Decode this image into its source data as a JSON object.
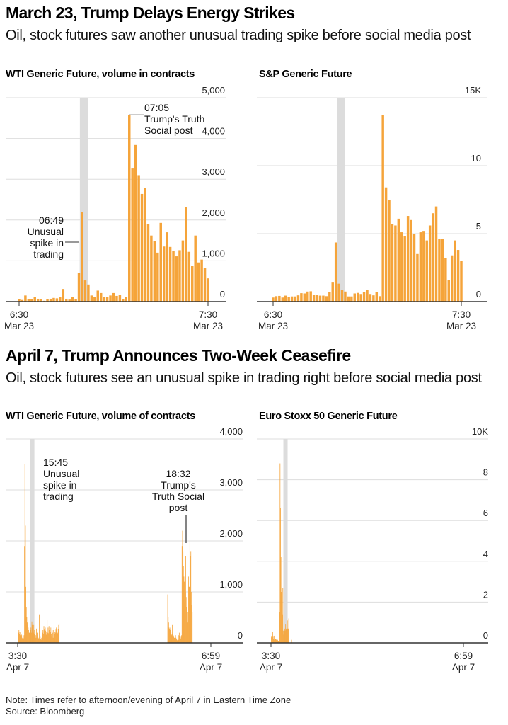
{
  "sections": [
    {
      "title": "March 23, Trump Delays Energy Strikes",
      "subtitle": "Oil, stock futures saw another unusual trading spike before social media post"
    },
    {
      "title": "April 7, Trump Announces Two-Week Ceasefire",
      "subtitle": "Oil, stock futures see an unusual spike in trading right before social media post"
    }
  ],
  "footer": {
    "note": "Note: Times refer to afternoon/evening of April 7 in Eastern Time Zone",
    "source": "Source: Bloomberg"
  },
  "colors": {
    "bar": "#f5a43a",
    "highlight": "#dcdcdc",
    "grid": "#dddddd",
    "axis": "#333333"
  },
  "chart_data": [
    {
      "id": "wti-mar23",
      "type": "bar",
      "title": "WTI Generic Future, volume in contracts",
      "xlabel": "",
      "ylabel": "",
      "ylim": [
        0,
        5000
      ],
      "yticks": [
        0,
        1000,
        2000,
        3000,
        4000,
        5000
      ],
      "ytick_labels": [
        "0",
        "1,000",
        "2,000",
        "3,000",
        "4,000",
        "5,000"
      ],
      "xtick_labels": [
        [
          "6:30",
          "Mar 23"
        ],
        [
          "7:30",
          "Mar 23"
        ]
      ],
      "x_start": "6:30",
      "x_end": "7:30",
      "interval": "1 min",
      "highlight_index": 19,
      "values": [
        60,
        40,
        150,
        60,
        60,
        110,
        70,
        60,
        20,
        60,
        70,
        90,
        80,
        110,
        310,
        70,
        50,
        120,
        60,
        700,
        2200,
        520,
        420,
        150,
        110,
        270,
        210,
        120,
        120,
        150,
        210,
        140,
        160,
        60,
        120,
        4580,
        3280,
        3840,
        3100,
        2640,
        2790,
        1900,
        1620,
        1480,
        1200,
        1930,
        1350,
        1700,
        1340,
        1240,
        1110,
        1260,
        1500,
        2320,
        1220,
        870,
        1620,
        960,
        1030,
        830,
        570
      ],
      "annotations": [
        {
          "time": "06:49",
          "text": [
            "06:49",
            "Unusual",
            "spike in",
            "trading"
          ],
          "index": 19
        },
        {
          "time": "07:05",
          "text": [
            "07:05",
            "Trump's Truth",
            "Social post"
          ],
          "index": 35
        }
      ],
      "grid": true
    },
    {
      "id": "sp-mar23",
      "type": "bar",
      "title": "S&P Generic Future",
      "xlabel": "",
      "ylabel": "",
      "ylim": [
        0,
        15000
      ],
      "yticks": [
        0,
        5000,
        10000,
        15000
      ],
      "ytick_labels": [
        "0",
        "5",
        "10",
        "15K"
      ],
      "xtick_labels": [
        [
          "6:30",
          "Mar 23"
        ],
        [
          "7:30",
          "Mar 23"
        ]
      ],
      "x_start": "6:30",
      "x_end": "7:30",
      "interval": "1 min",
      "highlight_index": 20,
      "values": [
        300,
        400,
        420,
        300,
        440,
        340,
        380,
        380,
        460,
        620,
        600,
        740,
        760,
        500,
        520,
        440,
        440,
        400,
        700,
        1400,
        4350,
        1320,
        880,
        740,
        380,
        380,
        600,
        640,
        560,
        700,
        860,
        560,
        460,
        680,
        400,
        13700,
        8400,
        7500,
        5700,
        5600,
        6100,
        5100,
        4800,
        6300,
        6000,
        5000,
        3500,
        5100,
        5200,
        4500,
        5600,
        6500,
        7000,
        4600,
        4600,
        3200,
        1600,
        3400,
        4500,
        3800,
        3000
      ],
      "grid": true
    },
    {
      "id": "wti-apr7",
      "type": "bar",
      "title": "WTI Generic Future, volume of contracts",
      "xlabel": "",
      "ylabel": "",
      "ylim": [
        0,
        4000
      ],
      "yticks": [
        0,
        1000,
        2000,
        3000,
        4000
      ],
      "ytick_labels": [
        "0",
        "1,000",
        "2,000",
        "3,000",
        "4,000"
      ],
      "xtick_labels": [
        [
          "3:30",
          "Apr 7"
        ],
        [
          "6:59",
          "Apr 7"
        ]
      ],
      "x_start": "3:30",
      "x_end": "6:59",
      "highlight_time": "15:45",
      "segments": [
        {
          "start_frac": 0.0,
          "values": [
            300,
            200,
            250,
            180,
            220,
            150,
            200,
            180,
            150,
            100,
            80,
            120,
            90,
            150,
            1900,
            3500,
            2300,
            1100,
            700,
            500,
            400,
            350,
            300,
            250,
            200,
            200,
            180,
            250,
            300,
            200,
            420,
            350,
            300,
            200,
            350,
            250,
            180,
            200,
            150,
            100,
            280,
            120,
            160,
            200,
            100,
            80,
            560,
            100,
            120,
            80,
            60,
            100,
            150,
            200,
            250,
            180,
            330,
            260,
            200,
            300,
            240,
            160,
            220,
            450,
            200,
            300,
            190,
            330,
            250,
            150,
            220,
            300,
            180,
            120,
            250,
            200,
            100,
            250,
            300,
            180,
            220,
            200,
            260,
            300,
            200,
            180,
            200,
            270,
            350,
            380
          ]
        },
        {
          "start_frac": 0.775,
          "values": [
            950,
            500,
            400,
            300,
            280,
            250,
            300,
            220,
            150,
            180,
            350,
            200,
            150,
            120,
            100,
            100,
            80,
            150,
            100,
            80,
            60,
            50,
            120,
            60,
            150,
            200,
            130,
            100,
            80,
            120,
            150,
            1900,
            2200,
            1800,
            1500,
            1300,
            1200,
            800,
            1000,
            1700,
            900,
            700,
            500,
            400,
            600,
            1300,
            1100,
            1100,
            2000,
            1700,
            1800,
            1000,
            750,
            600
          ]
        }
      ],
      "annotations": [
        {
          "time": "15:45",
          "text": [
            "15:45",
            "Unusual",
            "spike in",
            "trading"
          ]
        },
        {
          "time": "18:32",
          "text": [
            "18:32",
            "Trump's",
            "Truth Social",
            "post"
          ]
        }
      ],
      "grid": true
    },
    {
      "id": "stoxx-apr7",
      "type": "bar",
      "title": "Euro Stoxx 50 Generic Future",
      "xlabel": "",
      "ylabel": "",
      "ylim": [
        0,
        10000
      ],
      "yticks": [
        0,
        2000,
        4000,
        6000,
        8000,
        10000
      ],
      "ytick_labels": [
        "0",
        "2",
        "4",
        "6",
        "8",
        "10K"
      ],
      "xtick_labels": [
        [
          "3:30",
          "Apr 7"
        ],
        [
          "6:59",
          "Apr 7"
        ]
      ],
      "x_start": "3:30",
      "x_end": "6:59",
      "highlight_time": "15:45",
      "segments": [
        {
          "start_frac": 0.0,
          "values": [
            300,
            250,
            400,
            550,
            300,
            200,
            350,
            150,
            120,
            180,
            200,
            150,
            100,
            80,
            150,
            100,
            80,
            120,
            1500,
            8800,
            6600,
            4200,
            2500,
            1800,
            1400,
            2700,
            600,
            400,
            500,
            700,
            600,
            900,
            650,
            700,
            600,
            1100,
            700,
            700,
            1200,
            0,
            0,
            0,
            0,
            0,
            150
          ]
        }
      ],
      "grid": true
    }
  ]
}
